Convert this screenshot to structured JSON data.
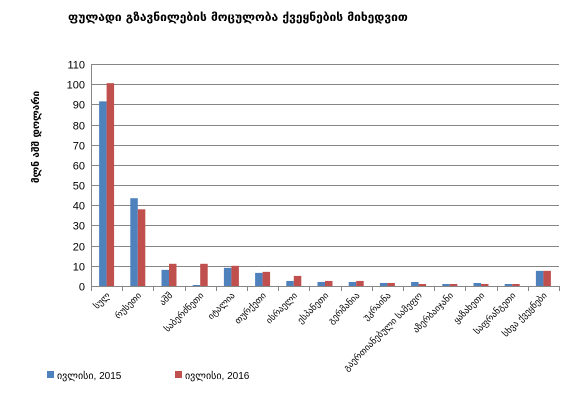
{
  "chart_data": {
    "type": "bar",
    "title": "ფულადი გზავნილების მოცულობა ქვეყნების მიხედვით",
    "ylabel": "მლნ აშშ დოლარი",
    "xlabel": "",
    "ylim": [
      0,
      110
    ],
    "yticks": [
      0,
      10,
      20,
      30,
      40,
      50,
      60,
      70,
      80,
      90,
      100,
      110
    ],
    "grid": true,
    "legend_position": "bottom-left",
    "categories": [
      "სულ",
      "რუსეთი",
      "აშშ",
      "საბერძნეთი",
      "იტალია",
      "თურქეთი",
      "ისრაელი",
      "ესპანეთი",
      "გერმანია",
      "უკრაინა",
      "გაერთიანებული სამეფო",
      "აზერბაიჯანი",
      "ყაზახეთი",
      "საფრანგეთი",
      "სხვა ქვეყნები"
    ],
    "series": [
      {
        "name": "ივლისი, 2015",
        "color": "#4f81bd",
        "values": [
          91.5,
          43.5,
          8,
          0.5,
          9,
          6.5,
          2.5,
          2,
          2,
          1.5,
          2,
          1,
          1.5,
          1,
          7.5
        ]
      },
      {
        "name": "ივლისი, 2016",
        "color": "#c0504d",
        "values": [
          100.5,
          38,
          11,
          11,
          10,
          7,
          5,
          2.5,
          2.5,
          1.5,
          1,
          1,
          1,
          1,
          7.5
        ]
      }
    ]
  }
}
